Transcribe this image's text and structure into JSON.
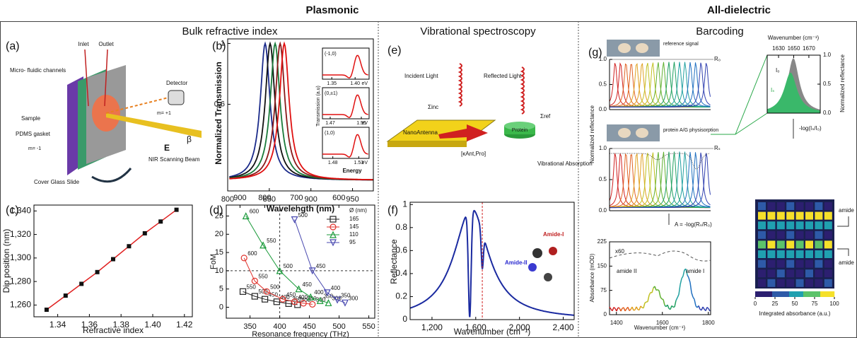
{
  "header": {
    "plasmonic": "Plasmonic",
    "all_dielectric": "All-dielectric"
  },
  "sections": {
    "bulk": "Bulk refractive index",
    "vibrational": "Vibrational spectroscopy",
    "barcoding": "Barcoding"
  },
  "panel_a": {
    "label": "(a)",
    "inlet": "Inlet",
    "outlet": "Outlet",
    "channels": "Micro- fluidic channels",
    "sample": "Sample",
    "gasket": "PDMS gasket",
    "detector": "Detector",
    "glass": "Cover Glass Slide",
    "beam": "NIR Scanning Beam",
    "e_field": "E",
    "angle": "β",
    "order_plus": "m= +1",
    "order_minus": "m= -1"
  },
  "panel_b": {
    "label": "(b)",
    "ylabel": "Normalized Transmission",
    "xlabel": "Wavelength (nm)",
    "xlim": [
      800,
      975
    ],
    "ylim": [
      0.03,
      1.03
    ],
    "xticks": [
      800,
      850,
      900,
      950
    ],
    "yticks": [
      0.6,
      1
    ],
    "peaks": [
      {
        "color": "#1a2a8a",
        "value": 845
      },
      {
        "color": "#111111",
        "value": 851
      },
      {
        "color": "#1a7a3a",
        "value": 857
      },
      {
        "color": "#8a1a1a",
        "value": 863
      },
      {
        "color": "#e01010",
        "value": 868
      }
    ],
    "inset": {
      "ylabel": "Transmission (a.u)",
      "xlabel": "Energy",
      "unit": "eV",
      "modes": [
        {
          "name": "(-1,0)",
          "xlim": [
            1.33,
            1.43
          ],
          "ticks": [
            1.35,
            {
              "value": 1.4,
              "label": "1.40"
            }
          ]
        },
        {
          "name": "(0,±1)",
          "xlim": [
            1.45,
            1.57
          ],
          "ticks": [
            1.47,
            1.55
          ]
        },
        {
          "name": "(1,0)",
          "xlim": [
            1.46,
            1.55
          ],
          "ticks": [
            1.48,
            1.53
          ]
        }
      ]
    }
  },
  "panel_c": {
    "label": "(c)",
    "ylabel": "Dip position (nm)",
    "xlabel": "Refractive index",
    "xlim": [
      1.325,
      1.425
    ],
    "ylim": [
      1250,
      1345
    ],
    "xticks": [
      1.34,
      1.36,
      1.38,
      {
        "value": 1.4,
        "label": "1.40"
      },
      1.42
    ],
    "yticks": [
      {
        "value": 1260,
        "label": "1,260"
      },
      {
        "value": 1280,
        "label": "1,280"
      },
      {
        "value": 1300,
        "label": "1,300"
      },
      {
        "value": 1320,
        "label": "1,320"
      },
      {
        "value": 1340,
        "label": "1,340"
      }
    ],
    "color": "#e02020",
    "x": [
      1.333,
      1.345,
      1.355,
      1.365,
      1.375,
      1.385,
      1.395,
      1.405,
      1.415
    ],
    "y": [
      1256,
      1268,
      1278,
      1288,
      1299,
      1310,
      1321,
      1331,
      1341
    ]
  },
  "panel_d": {
    "label": "(d)",
    "ylabel": "FoM",
    "xlabel": "Resonance frequency (THz)",
    "xlim": [
      310,
      560
    ],
    "ylim": [
      -3,
      28
    ],
    "xticks": [
      350,
      400,
      450,
      500,
      550
    ],
    "x2ticks": [
      900,
      800,
      700,
      600
    ],
    "yticks": [
      0,
      5,
      10,
      15,
      20,
      25
    ],
    "legend_title": "Ø (nm)",
    "guides": {
      "x": 400,
      "y": 10
    },
    "series": [
      {
        "name": "165",
        "color": "#222222",
        "marker": "square",
        "x": [
          338,
          358,
          375,
          395,
          415,
          430
        ],
        "y": [
          4.3,
          3.0,
          2.2,
          1.5,
          1.0,
          0.7
        ],
        "diameters": [
          550,
          500,
          450,
          400,
          350,
          300
        ]
      },
      {
        "name": "145",
        "color": "#e0302a",
        "marker": "circle",
        "x": [
          340,
          358,
          378,
          405,
          425,
          440,
          455
        ],
        "y": [
          13.5,
          7.2,
          4.3,
          2.2,
          1.5,
          1.1,
          0.8
        ],
        "diameters": [
          600,
          550,
          500,
          450,
          400,
          350,
          300
        ]
      },
      {
        "name": "110",
        "color": "#1a9a3a",
        "marker": "triangle",
        "x": [
          343,
          372,
          400,
          432,
          452,
          468,
          482
        ],
        "y": [
          25,
          17,
          10,
          5,
          2.8,
          1.8,
          1.2
        ],
        "diameters": [
          600,
          550,
          500,
          450,
          400,
          350,
          300
        ]
      },
      {
        "name": "95",
        "color": "#4a4ab0",
        "marker": "invtriangle",
        "x": [
          425,
          455,
          480,
          497,
          510
        ],
        "y": [
          24,
          10,
          4,
          2,
          1.2
        ],
        "diameters": [
          500,
          450,
          400,
          350,
          300
        ]
      }
    ]
  },
  "panel_e": {
    "label": "(e)",
    "incident": "Incident Light",
    "reflected": "Reflected Light",
    "antenna": "NanoAntenna",
    "protein": "Protein",
    "absorption": "Vibrational Absorption",
    "sigma_inc": "Σinc",
    "sigma_ref": "Σref",
    "coupling": "[κAnt,Pro]"
  },
  "panel_f": {
    "label": "(f)",
    "ylabel": "Reflectance",
    "xlabel": "Wavenumber (cm⁻¹)",
    "xlim": [
      1000,
      2500
    ],
    "ylim": [
      0,
      1.02
    ],
    "xticks": [
      {
        "value": 1200,
        "label": "1,200"
      },
      {
        "value": 1600,
        "label": "1,600"
      },
      {
        "value": 2000,
        "label": "2,000"
      },
      {
        "value": 2400,
        "label": "2,400"
      }
    ],
    "yticks": [
      0,
      0.2,
      0.4,
      0.6,
      0.8,
      1
    ],
    "marker_x": 1660,
    "amide_i": "Amide-I",
    "amide_ii": "Amide-II"
  },
  "panel_g": {
    "label": "(g)",
    "reference": "reference signal",
    "r0": "R₀",
    "protein": "protein A/G physisorption",
    "rs": "Rₛ",
    "refl_ticks": [
      {
        "value": 1,
        "label": "1.0"
      },
      0.5,
      {
        "value": 0,
        "label": "0.0"
      }
    ],
    "refl_label": "Normalized reflectance",
    "formula": "A = -log(Rₛ/R₀)",
    "abs_label": "Absorbance (mOD)",
    "abs_ticks": [
      225,
      150,
      75,
      0
    ],
    "abs_ylim": [
      0,
      225
    ],
    "scale": "x60",
    "amide_ii": "amide II",
    "amide_i": "amide I",
    "wn_xlim": [
      1370,
      1810
    ],
    "wn_ticks": [
      1400,
      1600,
      1800
    ],
    "wn_label": "Wavenumber (cm⁻¹)",
    "inset_wn_label": "Wavenumber (cm⁻¹)",
    "inset_xlim": [
      1615,
      1685
    ],
    "inset_ticks": [
      1630,
      1650,
      1670
    ],
    "i0": "I₀",
    "is": "Iₛ",
    "inset_refl_ticks": [
      {
        "value": 1,
        "label": "1.0"
      },
      0.5,
      {
        "value": 0,
        "label": "0.0"
      }
    ],
    "inset_refl_label": "Normalized reflectance",
    "integral": "-log(Iₛ/I₀)",
    "amide_top": "amide",
    "amide_bottom": "amide",
    "cbar_lim": [
      0,
      100
    ],
    "cbar_ticks": [
      0,
      25,
      50,
      75,
      100
    ],
    "cbar_label": "Integrated absorbance (a.u.)"
  }
}
